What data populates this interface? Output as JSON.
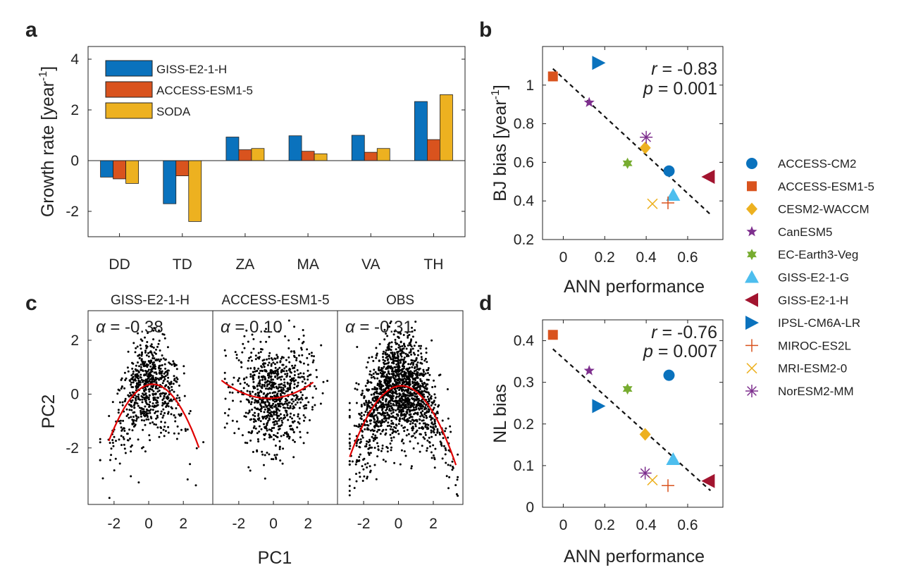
{
  "panels": {
    "a": "a",
    "b": "b",
    "c": "c",
    "d": "d"
  },
  "colors": {
    "GISS-E2-1-H_bar": "#0a72bd",
    "ACCESS-ESM1-5_bar": "#d9531e",
    "SODA_bar": "#edb120",
    "fit_line": "#e00000",
    "dots": "#000000"
  },
  "chart_data": [
    {
      "id": "a",
      "type": "bar",
      "ylabel": "Growth rate [year",
      "ylabel_sup": "-1",
      "ylabel_end": "]",
      "ylim": [
        -3,
        4.5
      ],
      "yticks": [
        -2,
        0,
        2,
        4
      ],
      "categories": [
        "DD",
        "TD",
        "ZA",
        "MA",
        "VA",
        "TH"
      ],
      "legend_position": "top-left",
      "series": [
        {
          "name": "GISS-E2-1-H",
          "color": "#0a72bd",
          "values": [
            -0.65,
            -1.7,
            0.93,
            0.98,
            1.0,
            2.33
          ]
        },
        {
          "name": "ACCESS-ESM1-5",
          "color": "#d9531e",
          "values": [
            -0.72,
            -0.6,
            0.43,
            0.37,
            0.33,
            0.83
          ]
        },
        {
          "name": "SODA",
          "color": "#edb120",
          "values": [
            -0.9,
            -2.4,
            0.48,
            0.27,
            0.48,
            2.6
          ]
        }
      ]
    },
    {
      "id": "b",
      "type": "scatter",
      "xlabel": "ANN performance",
      "ylabel": "BJ bias [year",
      "ylabel_sup": "-1",
      "ylabel_end": "]",
      "xlim": [
        -0.1,
        0.77
      ],
      "ylim": [
        0.2,
        1.2
      ],
      "xticks": [
        0,
        0.2,
        0.4,
        0.6
      ],
      "xticklabels": [
        "0",
        "0.2",
        "0.4",
        "0.6"
      ],
      "yticks": [
        0.2,
        0.4,
        0.6,
        0.8,
        1.0
      ],
      "yticklabels": [
        "0.2",
        "0.4",
        "0.6",
        "0.8",
        "1"
      ],
      "stats": {
        "r_label": "r",
        "r_value": " = -0.83",
        "p_label": "p",
        "p_value": " = 0.001"
      },
      "fit": {
        "x0": -0.05,
        "y0": 1.085,
        "x1": 0.71,
        "y1": 0.33
      },
      "points": [
        {
          "model": "ACCESS-CM2",
          "x": 0.51,
          "y": 0.555
        },
        {
          "model": "ACCESS-ESM1-5",
          "x": -0.05,
          "y": 1.045
        },
        {
          "model": "CESM2-WACCM",
          "x": 0.395,
          "y": 0.675
        },
        {
          "model": "CanESM5",
          "x": 0.125,
          "y": 0.91
        },
        {
          "model": "EC-Earth3-Veg",
          "x": 0.31,
          "y": 0.595
        },
        {
          "model": "GISS-E2-1-G",
          "x": 0.53,
          "y": 0.43
        },
        {
          "model": "GISS-E2-1-H",
          "x": 0.7,
          "y": 0.525
        },
        {
          "model": "IPSL-CM6A-LR",
          "x": 0.17,
          "y": 1.115
        },
        {
          "model": "MIROC-ES2L",
          "x": 0.505,
          "y": 0.39
        },
        {
          "model": "MRI-ESM2-0",
          "x": 0.43,
          "y": 0.385
        },
        {
          "model": "NorESM2-MM",
          "x": 0.4,
          "y": 0.73
        }
      ]
    },
    {
      "id": "c",
      "type": "scatter",
      "xlabel": "PC1",
      "ylabel": "PC2",
      "ylim": [
        -4.1,
        3.1
      ],
      "yticks": [
        -2,
        0,
        2
      ],
      "xlim": [
        -3.5,
        3.7
      ],
      "xticks": [
        -2,
        0,
        2
      ],
      "subplots": [
        {
          "title": "GISS-E2-1-H",
          "alpha_label": "α",
          "alpha_value": " = -0.38",
          "n": 700,
          "fit": [
            0.35,
            0.15,
            -0.33
          ],
          "xmin": -2.3,
          "xmax": 2.9,
          "sx": 1.0,
          "sy": 0.9
        },
        {
          "title": "ACCESS-ESM1-5",
          "alpha_label": "α",
          "alpha_value": " = 0.10",
          "n": 800,
          "fit": [
            -0.15,
            0.05,
            0.09
          ],
          "xmin": -3.0,
          "xmax": 2.3,
          "sx": 1.05,
          "sy": 1.0
        },
        {
          "title": "OBS",
          "alpha_label": "α",
          "alpha_value": " = -0.31",
          "n": 1600,
          "fit": [
            0.3,
            0.1,
            -0.3
          ],
          "xmin": -2.8,
          "xmax": 3.3,
          "sx": 1.2,
          "sy": 1.0
        }
      ]
    },
    {
      "id": "d",
      "type": "scatter",
      "xlabel": "ANN performance",
      "ylabel": "NL bias",
      "xlim": [
        -0.1,
        0.77
      ],
      "ylim": [
        0,
        0.45
      ],
      "xticks": [
        0,
        0.2,
        0.4,
        0.6
      ],
      "xticklabels": [
        "0",
        "0.2",
        "0.4",
        "0.6"
      ],
      "yticks": [
        0,
        0.1,
        0.2,
        0.3,
        0.4
      ],
      "yticklabels": [
        "0",
        "0.1",
        "0.2",
        "0.3",
        "0.4"
      ],
      "stats": {
        "r_label": "r",
        "r_value": " = -0.76",
        "p_label": "p",
        "p_value": " = 0.007"
      },
      "fit": {
        "x0": -0.05,
        "y0": 0.38,
        "x1": 0.71,
        "y1": 0.04
      },
      "points": [
        {
          "model": "ACCESS-CM2",
          "x": 0.51,
          "y": 0.317
        },
        {
          "model": "ACCESS-ESM1-5",
          "x": -0.05,
          "y": 0.414
        },
        {
          "model": "CESM2-WACCM",
          "x": 0.395,
          "y": 0.175
        },
        {
          "model": "CanESM5",
          "x": 0.125,
          "y": 0.328
        },
        {
          "model": "EC-Earth3-Veg",
          "x": 0.31,
          "y": 0.284
        },
        {
          "model": "GISS-E2-1-G",
          "x": 0.53,
          "y": 0.115
        },
        {
          "model": "GISS-E2-1-H",
          "x": 0.7,
          "y": 0.063
        },
        {
          "model": "IPSL-CM6A-LR",
          "x": 0.17,
          "y": 0.243
        },
        {
          "model": "MIROC-ES2L",
          "x": 0.505,
          "y": 0.052
        },
        {
          "model": "MRI-ESM2-0",
          "x": 0.43,
          "y": 0.065
        },
        {
          "model": "NorESM2-MM",
          "x": 0.395,
          "y": 0.082
        }
      ]
    }
  ],
  "model_legend": [
    {
      "model": "ACCESS-CM2",
      "marker": "circle",
      "color": "#0a72bd"
    },
    {
      "model": "ACCESS-ESM1-5",
      "marker": "square",
      "color": "#d9531e"
    },
    {
      "model": "CESM2-WACCM",
      "marker": "diamond",
      "color": "#edb120"
    },
    {
      "model": "CanESM5",
      "marker": "star5",
      "color": "#7e2f8e"
    },
    {
      "model": "EC-Earth3-Veg",
      "marker": "star6",
      "color": "#77ac30"
    },
    {
      "model": "GISS-E2-1-G",
      "marker": "triangle-up",
      "color": "#4dbeee"
    },
    {
      "model": "GISS-E2-1-H",
      "marker": "triangle-left",
      "color": "#a2142f"
    },
    {
      "model": "IPSL-CM6A-LR",
      "marker": "triangle-right",
      "color": "#0a72bd"
    },
    {
      "model": "MIROC-ES2L",
      "marker": "plus",
      "color": "#d9531e"
    },
    {
      "model": "MRI-ESM2-0",
      "marker": "x",
      "color": "#edb120"
    },
    {
      "model": "NorESM2-MM",
      "marker": "asterisk",
      "color": "#7e2f8e"
    }
  ]
}
